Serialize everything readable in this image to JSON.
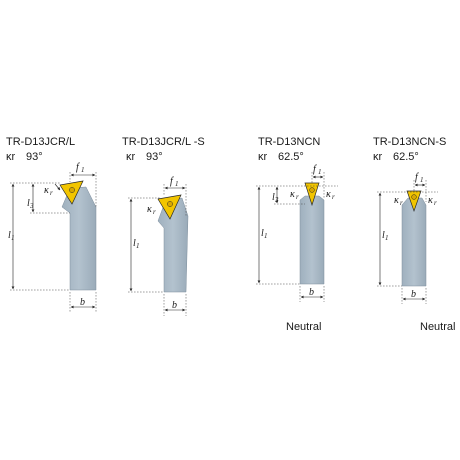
{
  "tools": [
    {
      "designation": "TR-D13JCR/L",
      "angle_prefix": "κr",
      "angle_value": "93°",
      "mode": ""
    },
    {
      "designation": "TR-D13JCR/L  -S",
      "angle_prefix": "κr",
      "angle_value": "93°",
      "mode": ""
    },
    {
      "designation": "TR-D13NCN",
      "angle_prefix": "κr",
      "angle_value": "62.5°",
      "mode": "Neutral"
    },
    {
      "designation": "TR-D13NCN-S",
      "angle_prefix": "κr",
      "angle_value": "62.5°",
      "mode": "Neutral"
    }
  ],
  "dimension_labels": {
    "f1": "f",
    "f1_sub": "1",
    "l1": "l",
    "l1_sub": "1",
    "l3": "l",
    "l3_sub": "3",
    "b": "b",
    "kappa": "κ",
    "kappa_sub": "r"
  },
  "colors": {
    "shank": "#a9b9c6",
    "insert": "#f2c500",
    "outline": "#2a2a2a"
  }
}
